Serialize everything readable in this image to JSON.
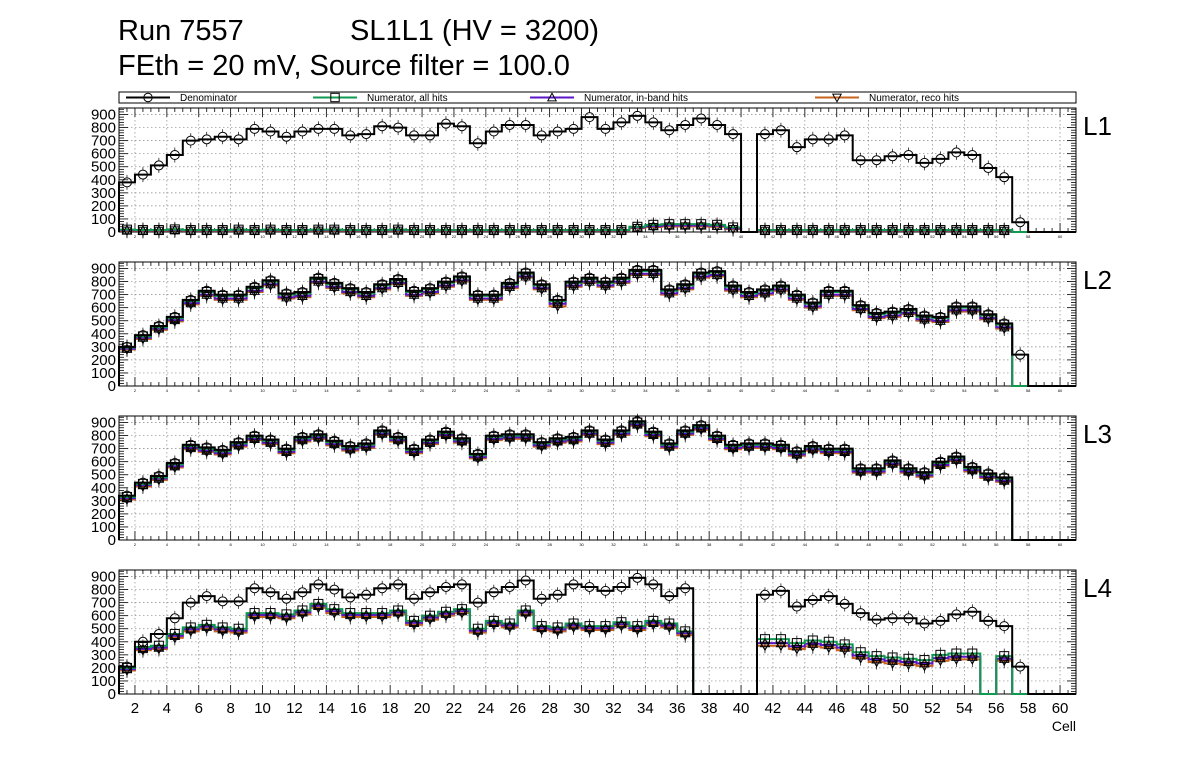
{
  "header": {
    "run": "Run 7557",
    "sl": "SL1L1 (HV = 3200)",
    "line2": "FEth = 20 mV, Source filter = 100.0"
  },
  "colors": {
    "denominator": "#000000",
    "numerator_all": "#109a50",
    "numerator_inband": "#5b16c8",
    "numerator_reco": "#c8641e",
    "grid": "#888888",
    "frame": "#000000"
  },
  "chart_data": {
    "type": "histogram-step",
    "xlabel": "Cell",
    "x_range": [
      1,
      61
    ],
    "x_ticks": [
      2,
      4,
      6,
      8,
      10,
      12,
      14,
      16,
      18,
      20,
      22,
      24,
      26,
      28,
      30,
      32,
      34,
      36,
      38,
      40,
      42,
      44,
      46,
      48,
      50,
      52,
      54,
      56,
      58,
      60
    ],
    "y_range": [
      0,
      950
    ],
    "y_ticks": [
      0,
      100,
      200,
      300,
      400,
      500,
      600,
      700,
      800,
      900
    ],
    "legend": [
      {
        "label": "Denominator",
        "marker": "circle",
        "color": "#000000"
      },
      {
        "label": "Numerator, all hits",
        "marker": "square",
        "color": "#109a50"
      },
      {
        "label": "Numerator, in-band hits",
        "marker": "triangle-up",
        "color": "#5b16c8"
      },
      {
        "label": "Numerator, reco hits",
        "marker": "triangle-down",
        "color": "#c8641e"
      }
    ],
    "panels": [
      {
        "name": "L1",
        "denominator": [
          380,
          440,
          510,
          590,
          700,
          710,
          730,
          710,
          790,
          770,
          730,
          770,
          790,
          790,
          740,
          750,
          810,
          800,
          740,
          740,
          830,
          810,
          680,
          770,
          820,
          820,
          740,
          770,
          790,
          880,
          790,
          840,
          890,
          840,
          780,
          820,
          870,
          820,
          750,
          0,
          750,
          780,
          650,
          710,
          710,
          740,
          550,
          550,
          580,
          590,
          530,
          560,
          610,
          590,
          490,
          420,
          75,
          0,
          0,
          0
        ],
        "numerator_all": [
          18,
          15,
          15,
          20,
          15,
          15,
          15,
          18,
          15,
          18,
          15,
          15,
          18,
          18,
          15,
          15,
          15,
          18,
          15,
          15,
          15,
          15,
          15,
          15,
          15,
          15,
          15,
          15,
          15,
          15,
          15,
          15,
          40,
          55,
          60,
          60,
          60,
          55,
          35,
          0,
          15,
          15,
          15,
          15,
          15,
          15,
          15,
          15,
          15,
          15,
          15,
          15,
          15,
          15,
          15,
          15,
          0,
          0,
          0,
          0
        ],
        "numerator_inband": [
          14,
          12,
          12,
          16,
          12,
          12,
          12,
          14,
          12,
          14,
          12,
          12,
          14,
          14,
          12,
          12,
          12,
          14,
          12,
          12,
          12,
          12,
          12,
          12,
          12,
          12,
          12,
          12,
          12,
          12,
          12,
          12,
          35,
          45,
          50,
          50,
          50,
          48,
          28,
          0,
          12,
          12,
          12,
          12,
          12,
          12,
          12,
          12,
          12,
          12,
          12,
          12,
          12,
          12,
          12,
          12,
          0,
          0,
          0,
          0
        ],
        "numerator_reco": [
          10,
          9,
          9,
          12,
          9,
          9,
          9,
          10,
          9,
          10,
          9,
          9,
          10,
          10,
          9,
          9,
          9,
          10,
          9,
          9,
          9,
          9,
          9,
          9,
          9,
          9,
          9,
          9,
          9,
          9,
          9,
          9,
          30,
          38,
          42,
          42,
          42,
          40,
          22,
          0,
          9,
          9,
          9,
          9,
          9,
          9,
          9,
          9,
          9,
          9,
          9,
          9,
          9,
          9,
          9,
          9,
          0,
          0,
          0,
          0
        ]
      },
      {
        "name": "L2",
        "denominator": [
          300,
          390,
          460,
          530,
          660,
          730,
          700,
          700,
          760,
          810,
          710,
          720,
          830,
          790,
          750,
          720,
          780,
          820,
          730,
          750,
          800,
          840,
          700,
          700,
          790,
          870,
          780,
          660,
          800,
          830,
          800,
          830,
          890,
          890,
          740,
          780,
          870,
          880,
          770,
          720,
          740,
          770,
          700,
          640,
          730,
          730,
          620,
          560,
          570,
          590,
          540,
          530,
          610,
          610,
          550,
          480,
          240,
          0,
          0,
          0
        ],
        "numerator_all": [
          295,
          380,
          450,
          520,
          650,
          720,
          690,
          690,
          750,
          800,
          700,
          710,
          820,
          780,
          740,
          710,
          770,
          810,
          720,
          740,
          790,
          830,
          690,
          690,
          780,
          860,
          770,
          650,
          790,
          820,
          790,
          820,
          880,
          880,
          730,
          770,
          860,
          870,
          760,
          710,
          730,
          760,
          690,
          630,
          720,
          720,
          610,
          550,
          560,
          580,
          530,
          520,
          600,
          600,
          540,
          470,
          0,
          0,
          0,
          0
        ],
        "numerator_inband": [
          285,
          370,
          440,
          505,
          635,
          700,
          670,
          670,
          730,
          780,
          680,
          690,
          800,
          760,
          720,
          690,
          750,
          790,
          700,
          720,
          770,
          810,
          670,
          670,
          760,
          840,
          750,
          630,
          770,
          800,
          770,
          800,
          860,
          860,
          710,
          750,
          840,
          850,
          740,
          690,
          710,
          740,
          670,
          610,
          700,
          700,
          590,
          530,
          540,
          560,
          510,
          500,
          580,
          580,
          520,
          450,
          0,
          0,
          0,
          0
        ],
        "numerator_reco": [
          280,
          360,
          430,
          495,
          625,
          690,
          660,
          660,
          720,
          770,
          670,
          680,
          790,
          750,
          710,
          680,
          740,
          780,
          690,
          710,
          760,
          800,
          660,
          660,
          750,
          830,
          740,
          610,
          760,
          790,
          760,
          790,
          850,
          850,
          700,
          740,
          830,
          840,
          730,
          680,
          700,
          730,
          660,
          600,
          690,
          690,
          580,
          520,
          530,
          550,
          500,
          490,
          570,
          570,
          510,
          440,
          0,
          0,
          0,
          0
        ]
      },
      {
        "name": "L3",
        "denominator": [
          340,
          440,
          490,
          590,
          730,
          710,
          690,
          750,
          800,
          770,
          700,
          790,
          810,
          760,
          720,
          740,
          840,
          790,
          700,
          770,
          830,
          780,
          660,
          800,
          810,
          810,
          750,
          780,
          790,
          840,
          770,
          840,
          910,
          830,
          740,
          840,
          880,
          800,
          730,
          740,
          740,
          730,
          680,
          720,
          700,
          700,
          550,
          550,
          610,
          550,
          520,
          600,
          640,
          560,
          510,
          480,
          0,
          0,
          0,
          0
        ],
        "numerator_all": [
          330,
          430,
          480,
          580,
          720,
          700,
          680,
          740,
          790,
          760,
          690,
          780,
          800,
          750,
          710,
          730,
          830,
          780,
          690,
          760,
          820,
          770,
          650,
          790,
          800,
          800,
          740,
          770,
          780,
          830,
          760,
          830,
          900,
          820,
          730,
          830,
          870,
          790,
          720,
          730,
          730,
          720,
          670,
          710,
          690,
          690,
          540,
          540,
          600,
          540,
          510,
          590,
          630,
          550,
          500,
          470,
          0,
          0,
          0,
          0
        ],
        "numerator_inband": [
          320,
          420,
          470,
          565,
          705,
          685,
          665,
          725,
          775,
          745,
          675,
          765,
          785,
          735,
          695,
          715,
          815,
          765,
          675,
          745,
          805,
          755,
          635,
          775,
          785,
          785,
          725,
          755,
          765,
          815,
          745,
          815,
          885,
          805,
          715,
          815,
          855,
          775,
          705,
          715,
          715,
          705,
          655,
          695,
          675,
          675,
          525,
          525,
          585,
          525,
          495,
          575,
          615,
          535,
          485,
          455,
          0,
          0,
          0,
          0
        ],
        "numerator_reco": [
          310,
          410,
          460,
          555,
          695,
          675,
          655,
          715,
          765,
          735,
          665,
          755,
          775,
          725,
          685,
          705,
          805,
          755,
          665,
          735,
          795,
          745,
          625,
          765,
          775,
          775,
          715,
          745,
          755,
          805,
          735,
          805,
          875,
          795,
          705,
          805,
          845,
          765,
          695,
          705,
          705,
          695,
          645,
          685,
          665,
          665,
          515,
          515,
          575,
          515,
          485,
          565,
          605,
          525,
          475,
          445,
          0,
          0,
          0,
          0
        ]
      },
      {
        "name": "L4",
        "denominator": [
          210,
          400,
          460,
          580,
          700,
          750,
          710,
          710,
          810,
          780,
          730,
          780,
          840,
          800,
          740,
          760,
          810,
          840,
          730,
          780,
          820,
          840,
          700,
          780,
          820,
          870,
          730,
          760,
          840,
          820,
          790,
          820,
          890,
          840,
          750,
          810,
          0,
          0,
          0,
          0,
          760,
          790,
          670,
          720,
          750,
          690,
          620,
          570,
          580,
          580,
          540,
          560,
          610,
          630,
          560,
          520,
          210,
          0,
          0,
          0
        ],
        "numerator_all": [
          200,
          360,
          370,
          460,
          510,
          530,
          510,
          500,
          620,
          620,
          610,
          640,
          690,
          650,
          620,
          620,
          620,
          640,
          560,
          600,
          630,
          650,
          500,
          560,
          540,
          640,
          520,
          510,
          540,
          520,
          520,
          550,
          520,
          560,
          540,
          480,
          0,
          0,
          0,
          0,
          420,
          420,
          390,
          410,
          400,
          380,
          320,
          290,
          280,
          270,
          260,
          300,
          310,
          310,
          0,
          290,
          0,
          0,
          0,
          0
        ],
        "numerator_inband": [
          190,
          345,
          355,
          445,
          495,
          515,
          495,
          485,
          605,
          605,
          595,
          625,
          675,
          635,
          605,
          605,
          605,
          625,
          545,
          585,
          615,
          635,
          485,
          545,
          525,
          625,
          505,
          495,
          525,
          505,
          505,
          535,
          505,
          545,
          525,
          465,
          0,
          0,
          0,
          0,
          390,
          390,
          365,
          385,
          375,
          355,
          295,
          265,
          255,
          245,
          235,
          275,
          285,
          285,
          0,
          270,
          0,
          0,
          0,
          0
        ],
        "numerator_reco": [
          180,
          335,
          345,
          430,
          480,
          500,
          480,
          470,
          590,
          590,
          580,
          610,
          660,
          620,
          590,
          590,
          590,
          610,
          530,
          570,
          600,
          620,
          470,
          530,
          510,
          610,
          490,
          480,
          510,
          490,
          490,
          520,
          490,
          530,
          510,
          450,
          0,
          0,
          0,
          0,
          370,
          370,
          345,
          365,
          355,
          335,
          275,
          245,
          235,
          225,
          215,
          255,
          265,
          265,
          0,
          255,
          0,
          0,
          0,
          0
        ]
      }
    ]
  }
}
